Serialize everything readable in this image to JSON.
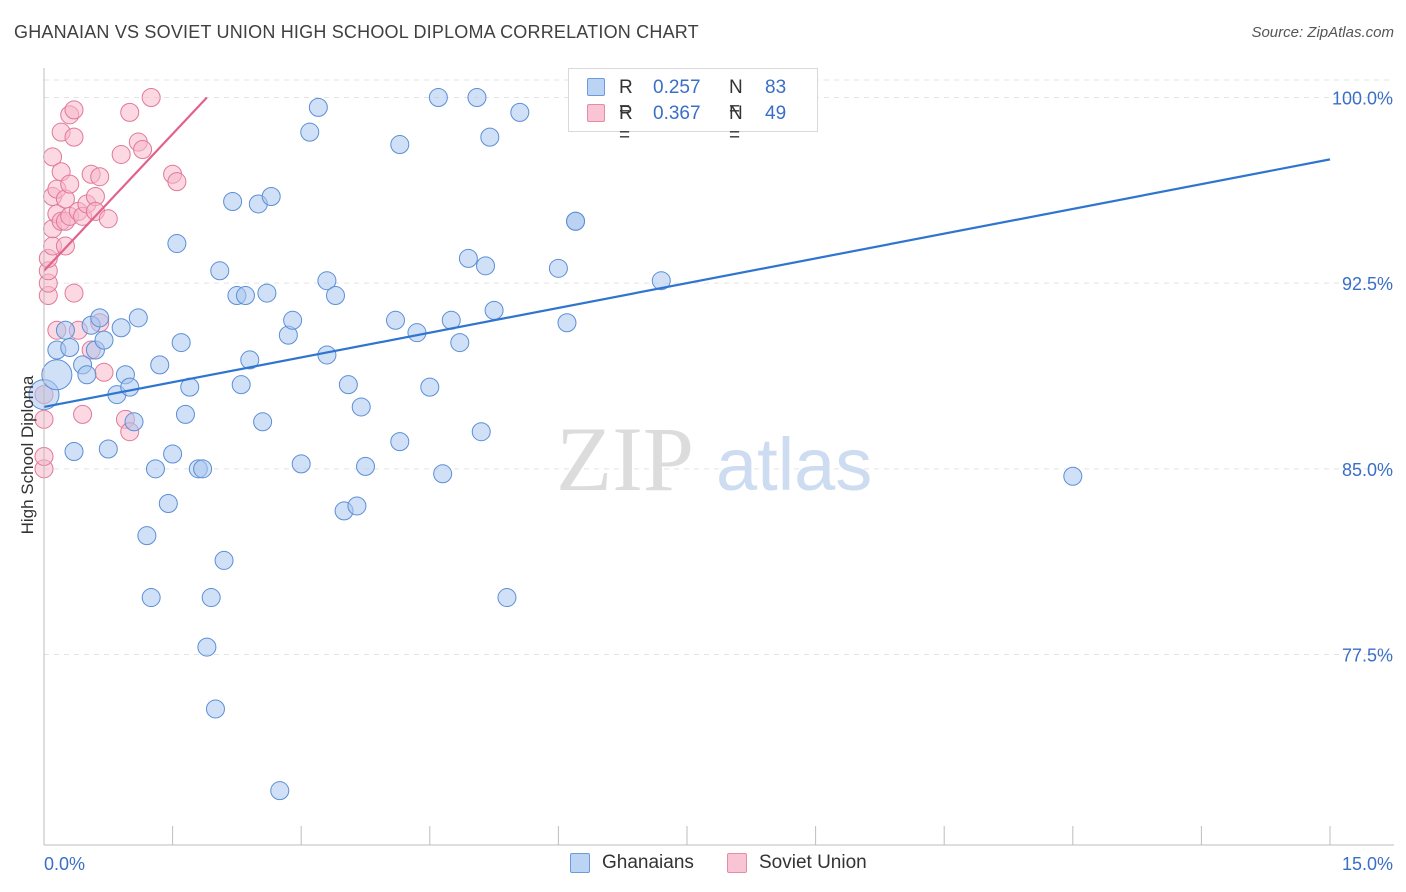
{
  "chart_data": {
    "type": "scatter",
    "title": "GHANAIAN VS SOVIET UNION HIGH SCHOOL DIPLOMA CORRELATION CHART",
    "source": "Source: ZipAtlas.com",
    "xlabel": "",
    "ylabel": "High School Diploma",
    "xlim": [
      0,
      15
    ],
    "ylim": [
      71,
      101.5
    ],
    "x_tick_labels": [
      "0.0%",
      "15.0%"
    ],
    "y_ticks": [
      77.5,
      85.0,
      92.5,
      100.0
    ],
    "y_tick_labels": [
      "77.5%",
      "85.0%",
      "92.5%",
      "100.0%"
    ],
    "watermark": {
      "zip": "ZIP",
      "atlas": "atlas"
    },
    "legend": [
      {
        "r_label": "R =",
        "r_value": "0.257",
        "n_label": "N =",
        "n_value": "83"
      },
      {
        "r_label": "R =",
        "r_value": "0.367",
        "n_label": "N =",
        "n_value": "49"
      }
    ],
    "series": [
      {
        "name": "Ghanaians",
        "color": "#a9c6ee",
        "edge": "#5b8fd6",
        "trend_color": "#2f75d0",
        "trend": {
          "x": [
            0.0,
            15.0
          ],
          "y": [
            87.5,
            97.5
          ]
        },
        "points": [
          [
            0.0,
            88.0
          ],
          [
            0.15,
            88.8
          ],
          [
            0.15,
            89.8
          ],
          [
            0.25,
            90.6
          ],
          [
            0.3,
            89.9
          ],
          [
            0.35,
            85.7
          ],
          [
            0.45,
            89.2
          ],
          [
            0.5,
            88.8
          ],
          [
            0.55,
            90.8
          ],
          [
            0.6,
            89.8
          ],
          [
            0.65,
            91.1
          ],
          [
            0.7,
            90.2
          ],
          [
            0.75,
            85.8
          ],
          [
            0.85,
            88.0
          ],
          [
            0.9,
            90.7
          ],
          [
            0.95,
            88.8
          ],
          [
            1.0,
            88.3
          ],
          [
            1.05,
            86.9
          ],
          [
            1.1,
            91.1
          ],
          [
            1.2,
            82.3
          ],
          [
            1.25,
            79.8
          ],
          [
            1.3,
            85.0
          ],
          [
            1.35,
            89.2
          ],
          [
            1.45,
            83.6
          ],
          [
            1.5,
            85.6
          ],
          [
            1.55,
            94.1
          ],
          [
            1.6,
            90.1
          ],
          [
            1.65,
            87.2
          ],
          [
            1.7,
            88.3
          ],
          [
            1.8,
            85.0
          ],
          [
            1.85,
            85.0
          ],
          [
            1.9,
            77.8
          ],
          [
            1.95,
            79.8
          ],
          [
            2.0,
            75.3
          ],
          [
            2.05,
            93.0
          ],
          [
            2.1,
            81.3
          ],
          [
            2.2,
            95.8
          ],
          [
            2.25,
            92.0
          ],
          [
            2.3,
            88.4
          ],
          [
            2.35,
            92.0
          ],
          [
            2.4,
            89.4
          ],
          [
            2.5,
            95.7
          ],
          [
            2.55,
            86.9
          ],
          [
            2.6,
            92.1
          ],
          [
            2.65,
            96.0
          ],
          [
            2.75,
            72.0
          ],
          [
            2.85,
            90.4
          ],
          [
            2.9,
            91.0
          ],
          [
            3.0,
            85.2
          ],
          [
            3.1,
            98.6
          ],
          [
            3.2,
            99.6
          ],
          [
            3.3,
            89.6
          ],
          [
            3.3,
            92.6
          ],
          [
            3.4,
            92.0
          ],
          [
            3.5,
            83.3
          ],
          [
            3.55,
            88.4
          ],
          [
            3.65,
            83.5
          ],
          [
            3.7,
            87.5
          ],
          [
            3.75,
            85.1
          ],
          [
            4.1,
            91.0
          ],
          [
            4.15,
            98.1
          ],
          [
            4.15,
            86.1
          ],
          [
            4.35,
            90.5
          ],
          [
            4.5,
            88.3
          ],
          [
            4.6,
            100.0
          ],
          [
            4.65,
            84.8
          ],
          [
            4.75,
            91.0
          ],
          [
            4.85,
            90.1
          ],
          [
            4.95,
            93.5
          ],
          [
            5.1,
            86.5
          ],
          [
            5.05,
            100.0
          ],
          [
            5.15,
            93.2
          ],
          [
            5.2,
            98.4
          ],
          [
            5.25,
            91.4
          ],
          [
            5.4,
            79.8
          ],
          [
            5.55,
            99.4
          ],
          [
            6.0,
            93.1
          ],
          [
            6.1,
            90.9
          ],
          [
            6.2,
            95.0
          ],
          [
            6.2,
            95.0
          ],
          [
            6.95,
            100.0
          ],
          [
            7.2,
            92.6
          ],
          [
            12.0,
            84.7
          ]
        ]
      },
      {
        "name": "Soviet Union",
        "color": "#f7b8cb",
        "edge": "#e2789b",
        "trend_color": "#e2628d",
        "trend": {
          "x": [
            0.0,
            1.9
          ],
          "y": [
            93.0,
            100.0
          ]
        },
        "points": [
          [
            0.0,
            85.0
          ],
          [
            0.0,
            85.5
          ],
          [
            0.0,
            87.0
          ],
          [
            0.0,
            88.0
          ],
          [
            0.05,
            92.0
          ],
          [
            0.05,
            92.5
          ],
          [
            0.05,
            93.0
          ],
          [
            0.05,
            93.5
          ],
          [
            0.1,
            94.0
          ],
          [
            0.1,
            94.7
          ],
          [
            0.1,
            96.0
          ],
          [
            0.1,
            97.6
          ],
          [
            0.15,
            95.3
          ],
          [
            0.15,
            96.3
          ],
          [
            0.15,
            90.6
          ],
          [
            0.2,
            95.0
          ],
          [
            0.2,
            97.0
          ],
          [
            0.2,
            98.6
          ],
          [
            0.25,
            94.0
          ],
          [
            0.25,
            95.0
          ],
          [
            0.25,
            95.9
          ],
          [
            0.3,
            95.2
          ],
          [
            0.3,
            96.5
          ],
          [
            0.3,
            99.3
          ],
          [
            0.35,
            99.5
          ],
          [
            0.35,
            98.4
          ],
          [
            0.35,
            92.1
          ],
          [
            0.4,
            95.4
          ],
          [
            0.4,
            90.6
          ],
          [
            0.45,
            95.2
          ],
          [
            0.45,
            87.2
          ],
          [
            0.5,
            95.7
          ],
          [
            0.55,
            96.9
          ],
          [
            0.55,
            89.8
          ],
          [
            0.6,
            96.0
          ],
          [
            0.6,
            95.4
          ],
          [
            0.65,
            96.8
          ],
          [
            0.65,
            90.9
          ],
          [
            0.7,
            88.9
          ],
          [
            0.75,
            95.1
          ],
          [
            0.9,
            97.7
          ],
          [
            0.95,
            87.0
          ],
          [
            1.0,
            86.5
          ],
          [
            1.0,
            99.4
          ],
          [
            1.1,
            98.2
          ],
          [
            1.15,
            97.9
          ],
          [
            1.25,
            100.0
          ],
          [
            1.5,
            96.9
          ],
          [
            1.55,
            96.6
          ]
        ]
      }
    ]
  }
}
